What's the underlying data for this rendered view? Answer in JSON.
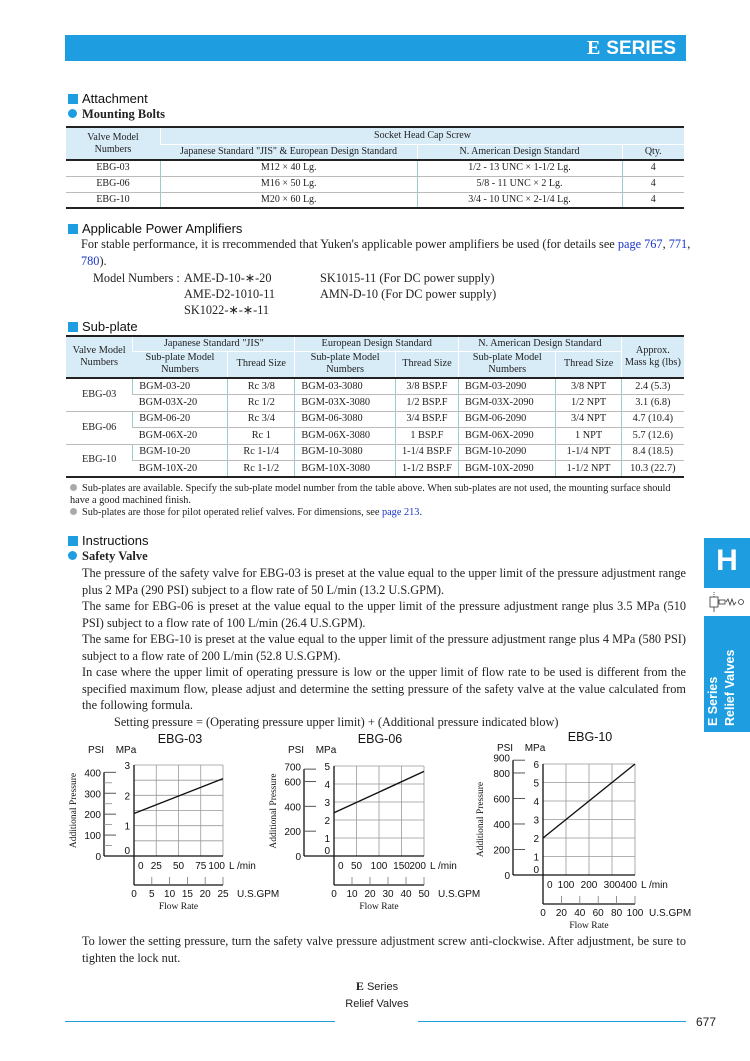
{
  "header": {
    "logo_letter": "E",
    "series": "SERIES"
  },
  "attachment": {
    "heading": "Attachment",
    "sub_heading": "Mounting Bolts",
    "table": {
      "col_valve": "Valve Model Numbers",
      "col_group": "Socket Head Cap Screw",
      "col_jis": "Japanese Standard \"JIS\" & European Design Standard",
      "col_na": "N. American Design Standard",
      "col_qty": "Qty.",
      "rows": [
        {
          "model": "EBG-03",
          "jis": "M12 × 40 Lg.",
          "na": "1/2 - 13 UNC × 1-1/2 Lg.",
          "qty": "4"
        },
        {
          "model": "EBG-06",
          "jis": "M16 × 50 Lg.",
          "na": "5/8 - 11 UNC × 2 Lg.",
          "qty": "4"
        },
        {
          "model": "EBG-10",
          "jis": "M20 × 60 Lg.",
          "na": "3/4 - 10 UNC × 2-1/4 Lg.",
          "qty": "4"
        }
      ]
    }
  },
  "amplifiers": {
    "heading": "Applicable Power Amplifiers",
    "text_pre": "For stable performance, it is rrecommended that Yuken's applicable power amplifiers be used (for details see ",
    "link1": "page 767",
    "sep1": ", ",
    "link2": "771",
    "sep2": ", ",
    "link3": "780",
    "text_post": ").",
    "model_label": "Model Numbers :",
    "models_col1": [
      "AME-D-10-∗-20",
      "AME-D2-1010-11",
      "SK1022-∗-∗-11"
    ],
    "models_col2": [
      "SK1015-11 (For DC power supply)",
      "AMN-D-10 (For DC power supply)"
    ]
  },
  "subplate": {
    "heading": "Sub-plate",
    "table": {
      "col_valve": "Valve Model Numbers",
      "group_jis": "Japanese Standard \"JIS\"",
      "group_eu": "European Design Standard",
      "group_na": "N. American Design Standard",
      "col_mass": "Approx. Mass kg (lbs)",
      "col_model": "Sub-plate Model Numbers",
      "col_thread": "Thread Size",
      "rows": [
        {
          "valve": "EBG-03",
          "jis_m": "BGM-03-20",
          "jis_t": "Rc 3/8",
          "eu_m": "BGM-03-3080",
          "eu_t": "3/8 BSP.F",
          "na_m": "BGM-03-2090",
          "na_t": "3/8 NPT",
          "mass": "2.4 (5.3)"
        },
        {
          "valve": "",
          "jis_m": "BGM-03X-20",
          "jis_t": "Rc 1/2",
          "eu_m": "BGM-03X-3080",
          "eu_t": "1/2 BSP.F",
          "na_m": "BGM-03X-2090",
          "na_t": "1/2 NPT",
          "mass": "3.1 (6.8)"
        },
        {
          "valve": "EBG-06",
          "jis_m": "BGM-06-20",
          "jis_t": "Rc 3/4",
          "eu_m": "BGM-06-3080",
          "eu_t": "3/4 BSP.F",
          "na_m": "BGM-06-2090",
          "na_t": "3/4 NPT",
          "mass": "4.7 (10.4)"
        },
        {
          "valve": "",
          "jis_m": "BGM-06X-20",
          "jis_t": "Rc 1",
          "eu_m": "BGM-06X-3080",
          "eu_t": "1 BSP.F",
          "na_m": "BGM-06X-2090",
          "na_t": "1 NPT",
          "mass": "5.7 (12.6)"
        },
        {
          "valve": "EBG-10",
          "jis_m": "BGM-10-20",
          "jis_t": "Rc 1-1/4",
          "eu_m": "BGM-10-3080",
          "eu_t": "1-1/4 BSP.F",
          "na_m": "BGM-10-2090",
          "na_t": "1-1/4 NPT",
          "mass": "8.4 (18.5)"
        },
        {
          "valve": "",
          "jis_m": "BGM-10X-20",
          "jis_t": "Rc 1-1/2",
          "eu_m": "BGM-10X-3080",
          "eu_t": "1-1/2 BSP.F",
          "na_m": "BGM-10X-2090",
          "na_t": "1-1/2 NPT",
          "mass": "10.3 (22.7)"
        }
      ]
    },
    "note1": "Sub-plates are available.  Specify the sub-plate model number from the table above.  When sub-plates are not used, the mounting surface should have a good machined finish.",
    "note2_pre": "Sub-plates are those for pilot operated relief valves.  For dimensions, see ",
    "note2_link": "page 213",
    "note2_post": "."
  },
  "instructions": {
    "heading": "Instructions",
    "sub_heading": "Safety Valve",
    "paragraphs": [
      "The pressure of the safety valve for EBG-03 is preset at the value equal to the upper limit of the pressure adjustment range plus 2 MPa (290 PSI) subject to a flow rate of 50 L/min (13.2 U.S.GPM).",
      "The same for EBG-06 is preset at the value equal to the upper limit of the pressure adjustment range plus 3.5 MPa (510 PSI) subject to a flow rate of 100 L/min (26.4 U.S.GPM).",
      "The same for EBG-10 is preset at the value equal to the upper limit of the pressure adjustment range plus 4 MPa (580 PSI) subject to a flow rate of 200 L/min (52.8 U.S.GPM).",
      "In case where the upper limit of operating pressure is low or the upper limit of flow rate to be used is different from the specified maximum flow, please adjust and determine the setting pressure of the safety valve at the value calculated from the following formula."
    ],
    "formula": "Setting pressure = (Operating pressure upper limit) + (Additional pressure indicated blow)",
    "closing": "To lower the setting pressure, turn the safety valve pressure adjustment screw anti-clockwise.  After adjustment, be sure to tighten the lock nut."
  },
  "chart_data": [
    {
      "type": "line",
      "title": "EBG-03",
      "ylabel": "Additional Pressure",
      "xlabel": "Flow Rate",
      "y_units": [
        "PSI",
        "MPa"
      ],
      "x_units": [
        "L /min",
        "U.S.GPM"
      ],
      "xlim": [
        0,
        100
      ],
      "ylim": [
        0,
        3
      ],
      "psi_ticks": [
        0,
        100,
        200,
        300,
        400
      ],
      "mpa_ticks": [
        0,
        1,
        2,
        3
      ],
      "lmin_ticks": [
        0,
        25,
        50,
        75,
        100
      ],
      "gpm_ticks": [
        0,
        5,
        10,
        15,
        20,
        25
      ],
      "grid": true,
      "x_grid_step": 25,
      "y_grid_step": 0.5,
      "x": [
        0,
        100
      ],
      "y": [
        1.4,
        2.55
      ]
    },
    {
      "type": "line",
      "title": "EBG-06",
      "ylabel": "Additional Pressure",
      "xlabel": "Flow Rate",
      "y_units": [
        "PSI",
        "MPa"
      ],
      "x_units": [
        "L /min",
        "U.S.GPM"
      ],
      "xlim": [
        0,
        200
      ],
      "ylim": [
        0,
        5
      ],
      "psi_ticks": [
        0,
        200,
        400,
        600,
        700
      ],
      "mpa_ticks": [
        0,
        1,
        2,
        3,
        4,
        5
      ],
      "lmin_ticks": [
        0,
        50,
        100,
        150,
        200
      ],
      "gpm_ticks": [
        0,
        10,
        20,
        30,
        40,
        50
      ],
      "grid": true,
      "x_grid_step": 50,
      "y_grid_step": 1,
      "x": [
        0,
        200
      ],
      "y": [
        2.4,
        4.7
      ]
    },
    {
      "type": "line",
      "title": "EBG-10",
      "ylabel": "Additional Pressure",
      "xlabel": "Flow Rate",
      "y_units": [
        "PSI",
        "MPa"
      ],
      "x_units": [
        "L /min",
        "U.S.GPM"
      ],
      "xlim": [
        0,
        400
      ],
      "ylim": [
        0,
        6
      ],
      "psi_ticks": [
        0,
        200,
        400,
        600,
        800,
        900
      ],
      "mpa_ticks": [
        0,
        1,
        2,
        3,
        4,
        5,
        6
      ],
      "lmin_ticks": [
        0,
        100,
        200,
        300,
        400
      ],
      "gpm_ticks": [
        0,
        20,
        40,
        60,
        80,
        100
      ],
      "grid": true,
      "x_grid_step": 100,
      "y_grid_step": 1,
      "x": [
        0,
        400
      ],
      "y": [
        2,
        6
      ]
    }
  ],
  "side_tab": {
    "letter": "H",
    "line1": "E Series",
    "line2": "Relief Valves",
    "icon": "relief-valve-symbol-icon"
  },
  "footer": {
    "logo_letter": "E",
    "series": "Series",
    "subtitle": "Relief Valves",
    "page_number": "677"
  },
  "colors": {
    "accent": "#1e9ee0",
    "table_header": "#d8ecf8",
    "link": "#1a35c8"
  }
}
